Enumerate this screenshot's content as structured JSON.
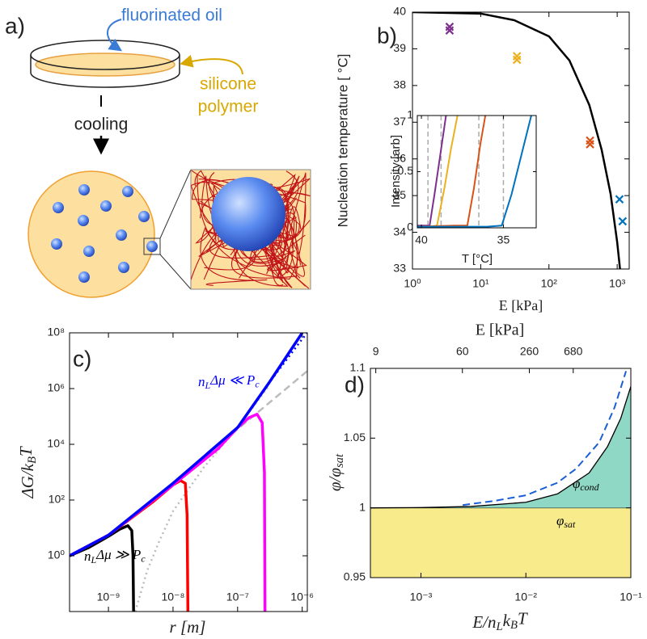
{
  "diagram": {
    "panel_label": "a)",
    "oil_label": "fluorinated oil",
    "polymer_label": [
      "silicone",
      "polymer"
    ],
    "cooling_label": "cooling"
  },
  "chart_data": [
    {
      "type": "line",
      "panel_label": "b)",
      "ylabel": "Nucleation temperature [ °C]",
      "xlabel": "E [kPa]",
      "xscale": "log",
      "xlim": [
        1,
        1500
      ],
      "xticks": [
        {
          "value": 1,
          "label": "10⁰"
        },
        {
          "value": 10,
          "label": "10¹"
        },
        {
          "value": 100,
          "label": "10²"
        },
        {
          "value": 1000,
          "label": "10³"
        }
      ],
      "ylim": [
        33,
        40
      ],
      "yticks": [
        33,
        34,
        35,
        36,
        37,
        38,
        39,
        40
      ],
      "series": [
        {
          "type": "line",
          "color": "#000000",
          "x": [
            1,
            10,
            31,
            100,
            200,
            390,
            590,
            800,
            1000,
            1100
          ],
          "values": [
            40,
            39.96,
            39.78,
            39.34,
            38.68,
            37.47,
            36.26,
            35.05,
            33.73,
            33
          ]
        },
        {
          "type": "scatter",
          "color": "#7e2f8e",
          "x": [
            3.5,
            3.5
          ],
          "values": [
            39.5,
            39.6
          ]
        },
        {
          "type": "scatter",
          "color": "#edb120",
          "x": [
            34,
            34
          ],
          "values": [
            38.7,
            38.8
          ]
        },
        {
          "type": "scatter",
          "color": "#d95319",
          "x": [
            400,
            400
          ],
          "values": [
            36.4,
            36.5
          ]
        },
        {
          "type": "scatter",
          "color": "#0072bd",
          "x": [
            1080,
            1200
          ],
          "values": [
            34.9,
            34.3
          ]
        }
      ]
    },
    {
      "type": "line",
      "ylabel": "Intensity [arb]",
      "xlabel": "T [°C]",
      "xlim": [
        40.25,
        33
      ],
      "xticks": [
        40,
        35
      ],
      "ylim": [
        0,
        1
      ],
      "yticks": [
        0,
        0.5,
        1
      ],
      "vlines": [
        39.6,
        38.8,
        36.5,
        35.0
      ],
      "vline_color": "#aaaaaa",
      "series": [
        {
          "type": "line",
          "color": "#7e2f8e",
          "x": [
            40.25,
            39.6,
            39.5,
            39.2,
            38.9,
            38.5
          ],
          "values": [
            0.02,
            0.02,
            0.02,
            0.3,
            0.6,
            1
          ]
        },
        {
          "type": "line",
          "color": "#edb120",
          "x": [
            40.25,
            39.5,
            39.05,
            38.6,
            38.2,
            37.8
          ],
          "values": [
            0.01,
            0.01,
            0.02,
            0.35,
            0.7,
            1
          ]
        },
        {
          "type": "line",
          "color": "#d95319",
          "x": [
            40.25,
            38,
            37.2,
            36.8,
            36.4,
            36.1
          ],
          "values": [
            0.01,
            0.02,
            0.02,
            0.35,
            0.75,
            1
          ]
        },
        {
          "type": "line",
          "color": "#0072bd",
          "x": [
            40.25,
            36,
            35.1,
            34.5,
            33.9,
            33.3
          ],
          "values": [
            0.01,
            0.01,
            0.02,
            0.3,
            0.65,
            1
          ]
        }
      ]
    },
    {
      "type": "line",
      "panel_label": "c)",
      "xlabel": "r [m]",
      "ylabel": [
        "ΔG/k",
        "B",
        "T"
      ],
      "xscale": "log",
      "yscale": "log",
      "xlim": [
        2.5e-10,
        1.2e-06
      ],
      "ylim": [
        0.01,
        100000000.0
      ],
      "xticks": [
        {
          "value": 1e-09,
          "label": "10⁻⁹"
        },
        {
          "value": 1e-08,
          "label": "10⁻⁸"
        },
        {
          "value": 1e-07,
          "label": "10⁻⁷"
        },
        {
          "value": 1e-06,
          "label": "10⁻⁶"
        }
      ],
      "yticks": [
        {
          "value": 1,
          "label": "10⁰"
        },
        {
          "value": 100,
          "label": "10²"
        },
        {
          "value": 10000,
          "label": "10⁴"
        },
        {
          "value": 1000000,
          "label": "10⁶"
        },
        {
          "value": 100000000,
          "label": "10⁸"
        }
      ],
      "annotations": [
        {
          "parts": [
            "n",
            "L",
            "Δμ ≪ P",
            "c"
          ],
          "color": "#0000ff"
        },
        {
          "parts": [
            "n",
            "L",
            "Δμ ≫ P",
            "c"
          ],
          "color": "#000000"
        }
      ],
      "series": [
        {
          "type": "line",
          "style": "dashed",
          "color": "#bbbbbb",
          "x": [
            2.5e-10,
            1e-09,
            1e-08,
            1e-07,
            1e-06,
            1.2e-06
          ],
          "values": [
            1,
            5.5,
            400,
            35000,
            3000000,
            4300000
          ]
        },
        {
          "type": "line",
          "style": "dotted",
          "color": "#bbbbbb",
          "x": [
            2.6e-09,
            4e-09,
            6e-09,
            1e-08,
            3e-08,
            1e-07,
            3e-07
          ],
          "values": [
            0.01,
            0.3,
            3,
            40,
            1500,
            40000,
            1200000
          ]
        },
        {
          "type": "line",
          "color": "#000000",
          "x": [
            2.5e-10,
            5e-10,
            1e-09,
            1.5e-09,
            2e-09,
            2.3e-09,
            2.4e-09,
            2.45e-09
          ],
          "values": [
            1,
            2,
            5,
            9,
            12,
            8,
            1,
            0.01
          ]
        },
        {
          "type": "line",
          "color": "#ff0000",
          "x": [
            2.5e-10,
            1e-09,
            5e-09,
            1e-08,
            1.3e-08,
            1.55e-08,
            1.65e-08,
            1.7e-08
          ],
          "values": [
            1,
            5.5,
            90,
            350,
            500,
            400,
            30,
            0.01
          ]
        },
        {
          "type": "line",
          "color": "#ff00ff",
          "x": [
            2.5e-10,
            1e-09,
            1e-08,
            5e-08,
            1e-07,
            1.5e-07,
            2e-07,
            2.4e-07,
            2.6e-07,
            2.65e-07
          ],
          "values": [
            1,
            5.5,
            350,
            7000,
            40000,
            90000,
            120000,
            60000,
            1000,
            0.01
          ]
        },
        {
          "type": "line",
          "color": "#0000ff",
          "x": [
            2.5e-10,
            1e-09,
            1e-08,
            1e-07,
            3e-07,
            1e-06
          ],
          "values": [
            1,
            5.5,
            400,
            40000,
            1500000,
            100000000
          ]
        },
        {
          "type": "line",
          "style": "dotted",
          "color": "#0000ff",
          "x": [
            1e-07,
            3e-07,
            1e-06,
            1.2e-06
          ],
          "values": [
            40000,
            1500000,
            60000000,
            100000000
          ]
        }
      ]
    },
    {
      "type": "area",
      "panel_label": "d)",
      "xlabel": [
        "E/n",
        "L",
        "k",
        "B",
        "T"
      ],
      "ylabel": [
        "φ/φ",
        "sat"
      ],
      "x2label": "E [kPa]",
      "xscale": "log",
      "xlim": [
        0.00033,
        0.1
      ],
      "xticks": [
        {
          "value": 0.001,
          "label": "10⁻³"
        },
        {
          "value": 0.01,
          "label": "10⁻²"
        },
        {
          "value": 0.1,
          "label": "10⁻¹"
        }
      ],
      "x2scale": "log",
      "x2lim": [
        8,
        2400
      ],
      "x2ticks": [
        9,
        60,
        260,
        680
      ],
      "ylim": [
        0.95,
        1.1
      ],
      "yticks": [
        0.95,
        1,
        1.05,
        1.1
      ],
      "sat_level": 1,
      "sat_color": "#f8eb8c",
      "annotations": [
        {
          "parts": [
            "φ",
            "cond"
          ],
          "color": "#000000"
        },
        {
          "parts": [
            "φ",
            "sat"
          ],
          "color": "#000000"
        }
      ],
      "series": [
        {
          "type": "line",
          "color": "#000000",
          "fill": "#8fd8c6",
          "x": [
            0.00033,
            0.001,
            0.003,
            0.01,
            0.02,
            0.04,
            0.06,
            0.08,
            0.1
          ],
          "values": [
            1,
            1.0002,
            1.001,
            1.004,
            1.01,
            1.025,
            1.044,
            1.064,
            1.087
          ]
        },
        {
          "type": "line",
          "style": "dashed",
          "color": "#1a5fd6",
          "x": [
            0.0025,
            0.005,
            0.01,
            0.02,
            0.03,
            0.05,
            0.07,
            0.09
          ],
          "values": [
            1.002,
            1.005,
            1.009,
            1.018,
            1.028,
            1.047,
            1.072,
            1.098
          ]
        }
      ]
    }
  ]
}
